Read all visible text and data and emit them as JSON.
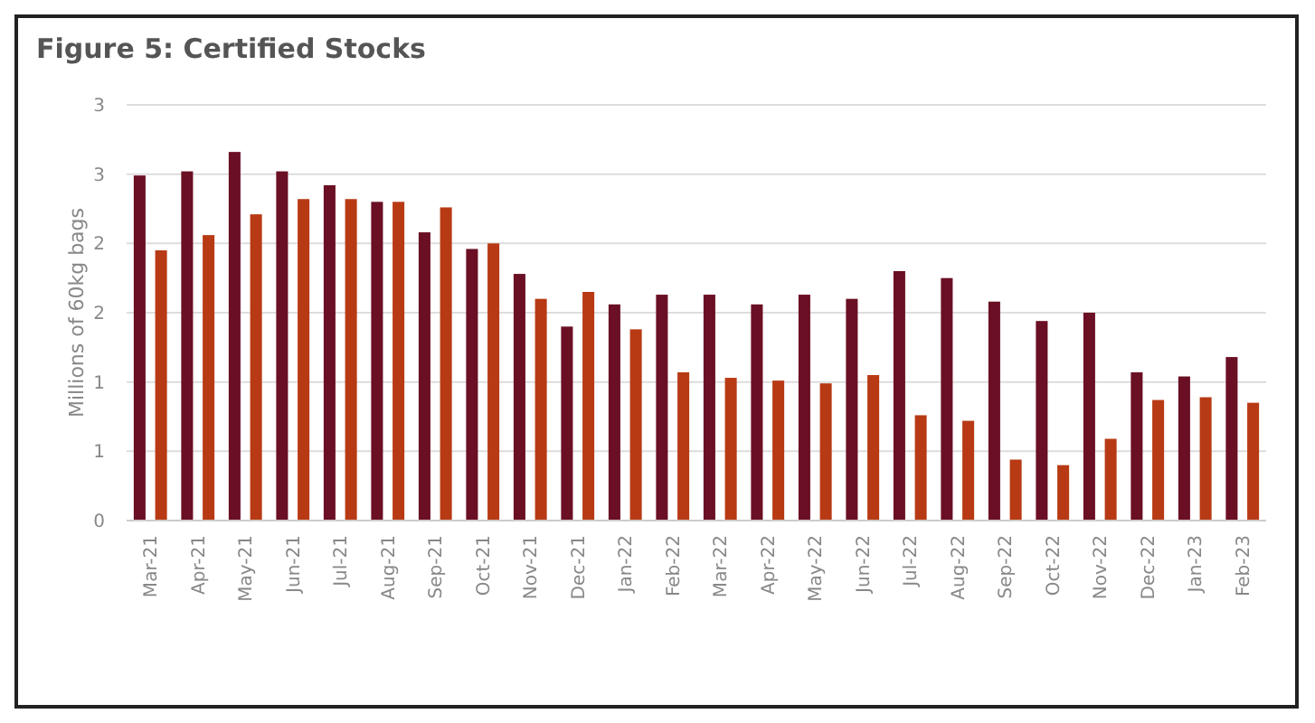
{
  "chart_data": {
    "type": "bar",
    "title": "Figure 5: Certified Stocks",
    "ylabel": "Millions of 60kg bags",
    "categories": [
      "Mar-21",
      "Apr-21",
      "May-21",
      "Jun-21",
      "Jul-21",
      "Aug-21",
      "Sep-21",
      "Oct-21",
      "Nov-21",
      "Dec-21",
      "Jan-22",
      "Feb-22",
      "Mar-22",
      "Apr-22",
      "May-22",
      "Jun-22",
      "Jul-22",
      "Aug-22",
      "Sep-22",
      "Oct-22",
      "Nov-22",
      "Dec-22",
      "Jan-23",
      "Feb-23"
    ],
    "series": [
      {
        "color": "#6b0f24",
        "values": [
          2.49,
          2.52,
          2.66,
          2.52,
          2.42,
          2.3,
          2.08,
          1.96,
          1.78,
          1.4,
          1.56,
          1.63,
          1.63,
          1.56,
          1.63,
          1.6,
          1.8,
          1.75,
          1.58,
          1.44,
          1.5,
          1.07,
          1.04,
          1.18
        ]
      },
      {
        "color": "#b83a14",
        "values": [
          1.95,
          2.06,
          2.21,
          2.32,
          2.32,
          2.3,
          2.26,
          2.0,
          1.6,
          1.65,
          1.38,
          1.07,
          1.03,
          1.01,
          0.99,
          1.05,
          0.76,
          0.72,
          0.44,
          0.4,
          0.59,
          0.87,
          0.89,
          0.85
        ]
      }
    ],
    "ylim": [
      0,
      3
    ],
    "yticks": [
      0,
      {
        "value": 0.5,
        "label": "1"
      },
      1,
      {
        "value": 1.5,
        "label": "2"
      },
      2,
      {
        "value": 2.5,
        "label": "3"
      },
      3
    ],
    "grid": "y"
  }
}
